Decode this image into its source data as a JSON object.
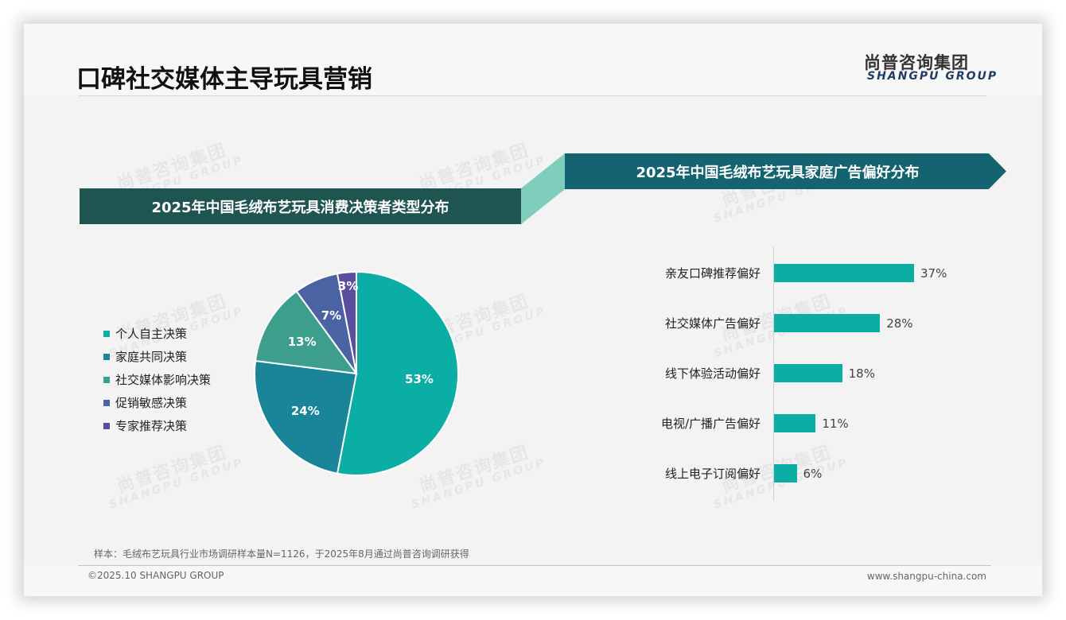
{
  "header": {
    "title": "口碑社交媒体主导玩具营销",
    "logo_cn": "尚普咨询集团",
    "logo_en": "SHANGPU GROUP"
  },
  "watermark": {
    "cn": "尚普咨询集团",
    "en": "SHANGPU GROUP"
  },
  "colors": {
    "banner_left": "#1f5550",
    "banner_right": "#136370",
    "connector": "#7fcdbb",
    "bar": "#0aaea5"
  },
  "left_panel": {
    "title": "2025年中国毛绒布艺玩具消费决策者类型分布"
  },
  "right_panel": {
    "title": "2025年中国毛绒布艺玩具家庭广告偏好分布"
  },
  "chart_data": [
    {
      "type": "pie",
      "title": "2025年中国毛绒布艺玩具消费决策者类型分布",
      "categories": [
        "个人自主决策",
        "家庭共同决策",
        "社交媒体影响决策",
        "促销敏感决策",
        "专家推荐决策"
      ],
      "values": [
        53,
        24,
        13,
        7,
        3
      ],
      "labels": [
        "53%",
        "24%",
        "13%",
        "7%",
        "3%"
      ],
      "colors": [
        "#0aaea5",
        "#1a8599",
        "#3e9e8c",
        "#4b62a3",
        "#5a4e9e"
      ],
      "legend_position": "left",
      "unit": "%"
    },
    {
      "type": "bar",
      "orientation": "horizontal",
      "title": "2025年中国毛绒布艺玩具家庭广告偏好分布",
      "categories": [
        "亲友口碑推荐偏好",
        "社交媒体广告偏好",
        "线下体验活动偏好",
        "电视/广播广告偏好",
        "线上电子订阅偏好"
      ],
      "values": [
        37,
        28,
        18,
        11,
        6
      ],
      "labels": [
        "37%",
        "28%",
        "18%",
        "11%",
        "6%"
      ],
      "xlabel": "",
      "ylabel": "",
      "grid": false,
      "unit": "%"
    }
  ],
  "footer": {
    "note": "样本：毛绒布艺玩具行业市场调研样本量N=1126，于2025年8月通过尚普咨询调研获得",
    "copyright": "©2025.10 SHANGPU GROUP",
    "website": "www.shangpu-china.com"
  }
}
